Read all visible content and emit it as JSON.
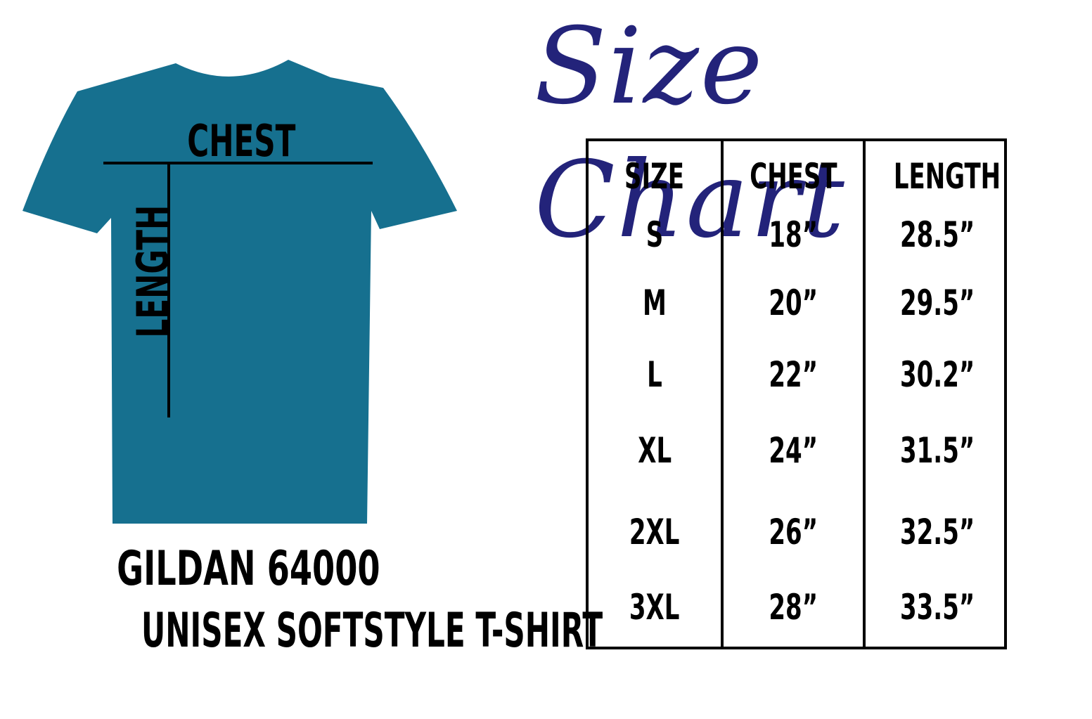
{
  "title": "Size Chart",
  "colors": {
    "shirt": "#16708f",
    "title": "#23237a",
    "ink": "#000000"
  },
  "shirt_labels": {
    "chest": "CHEST",
    "length": "LENGTH"
  },
  "product": {
    "line1": "GILDAN 64000",
    "line2": "UNISEX SOFTSTYLE T-SHIRT"
  },
  "table": {
    "headers": [
      "SIZE",
      "CHEST",
      "LENGTH"
    ],
    "rows": [
      [
        "S",
        "18”",
        "28.5”"
      ],
      [
        "M",
        "20”",
        "29.5”"
      ],
      [
        "L",
        "22”",
        "30.2”"
      ],
      [
        "XL",
        "24”",
        "31.5”"
      ],
      [
        "2XL",
        "26”",
        "32.5”"
      ],
      [
        "3XL",
        "28”",
        "33.5”"
      ]
    ]
  }
}
